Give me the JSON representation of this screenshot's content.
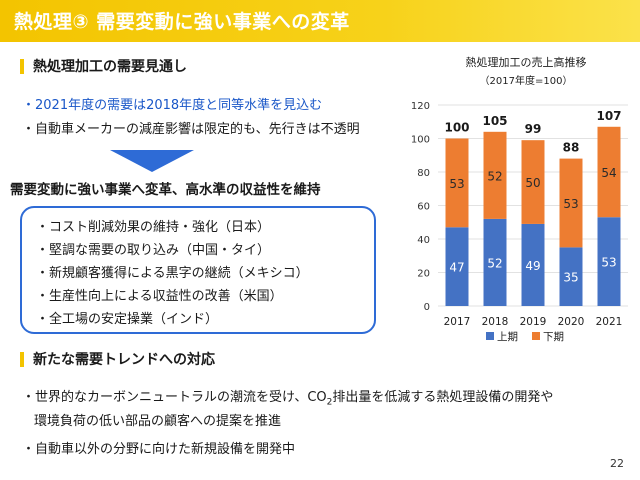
{
  "header": {
    "title": "熱処理③ 需要変動に強い事業への変革"
  },
  "section1": {
    "title": "熱処理加工の需要見通し",
    "bullets": [
      "・2021年度の需要は2018年度と同等水準を見込む",
      "・自動車メーカーの減産影響は限定的も、先行きは不透明"
    ]
  },
  "strategy": {
    "headline": "需要変動に強い事業へ変革、高水準の収益性を維持",
    "items": [
      "・コスト削減効果の維持・強化（日本）",
      "・堅調な需要の取り込み（中国・タイ）",
      "・新規顧客獲得による黒字の継続（メキシコ）",
      "・生産性向上による収益性の改善（米国）",
      "・全工場の安定操業（インド）"
    ]
  },
  "section2": {
    "title": "新たな需要トレンドへの対応",
    "bullet1_pre": "・世界的なカーボンニュートラルの潮流を受け、CO",
    "bullet1_sub": "2",
    "bullet1_post": "排出量を低減する熱処理設備の開発や",
    "bullet1_line2": "環境負荷の低い部品の顧客への提案を推進",
    "bullet2": "・自動車以外の分野に向けた新規設備を開発中"
  },
  "page_number": "22",
  "colors": {
    "accent_yellow": "#f3c400",
    "blue": "#2e6bd6",
    "first_half": "#4472c4",
    "second_half": "#ed7d31"
  },
  "chart_data": {
    "type": "bar",
    "stacked": true,
    "title": "熱処理加工の売上高推移",
    "subtitle": "（2017年度=100）",
    "categories": [
      "2017",
      "2018",
      "2019",
      "2020",
      "2021"
    ],
    "series": [
      {
        "name": "上期",
        "values": [
          47,
          52,
          49,
          35,
          53
        ],
        "color": "#4472c4"
      },
      {
        "name": "下期",
        "values": [
          53,
          52,
          50,
          53,
          54
        ],
        "color": "#ed7d31"
      }
    ],
    "totals": [
      "100",
      "105",
      "99",
      "88",
      "107"
    ],
    "ylim": [
      0,
      120
    ],
    "yticks": [
      "0",
      "20",
      "40",
      "60",
      "80",
      "100",
      "120"
    ],
    "legend_position": "bottom"
  }
}
